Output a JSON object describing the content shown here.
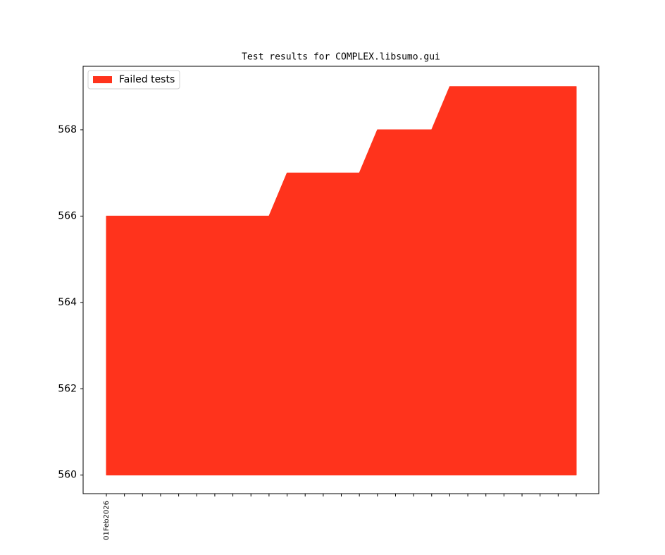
{
  "chart_data": {
    "type": "area",
    "title": "Test results for COMPLEX.libsumo.gui",
    "categories": [
      "01Feb2026",
      null,
      null,
      null,
      null,
      null,
      null,
      null,
      null,
      null,
      null,
      null,
      null,
      null,
      null,
      null,
      null,
      null,
      null,
      null,
      null,
      null,
      null,
      null,
      null,
      null,
      null
    ],
    "series": [
      {
        "name": "Failed tests",
        "color": "#ff331c",
        "values": [
          566,
          566,
          566,
          566,
          566,
          566,
          566,
          566,
          566,
          566,
          567,
          567,
          567,
          567,
          567,
          568,
          568,
          568,
          568,
          569,
          569,
          569,
          569,
          569,
          569,
          569,
          569
        ]
      }
    ],
    "area_base": 560,
    "ylim": [
      559.57,
      569.47
    ],
    "yticks": [
      560,
      562,
      564,
      566,
      568
    ],
    "legend": "upper left"
  }
}
